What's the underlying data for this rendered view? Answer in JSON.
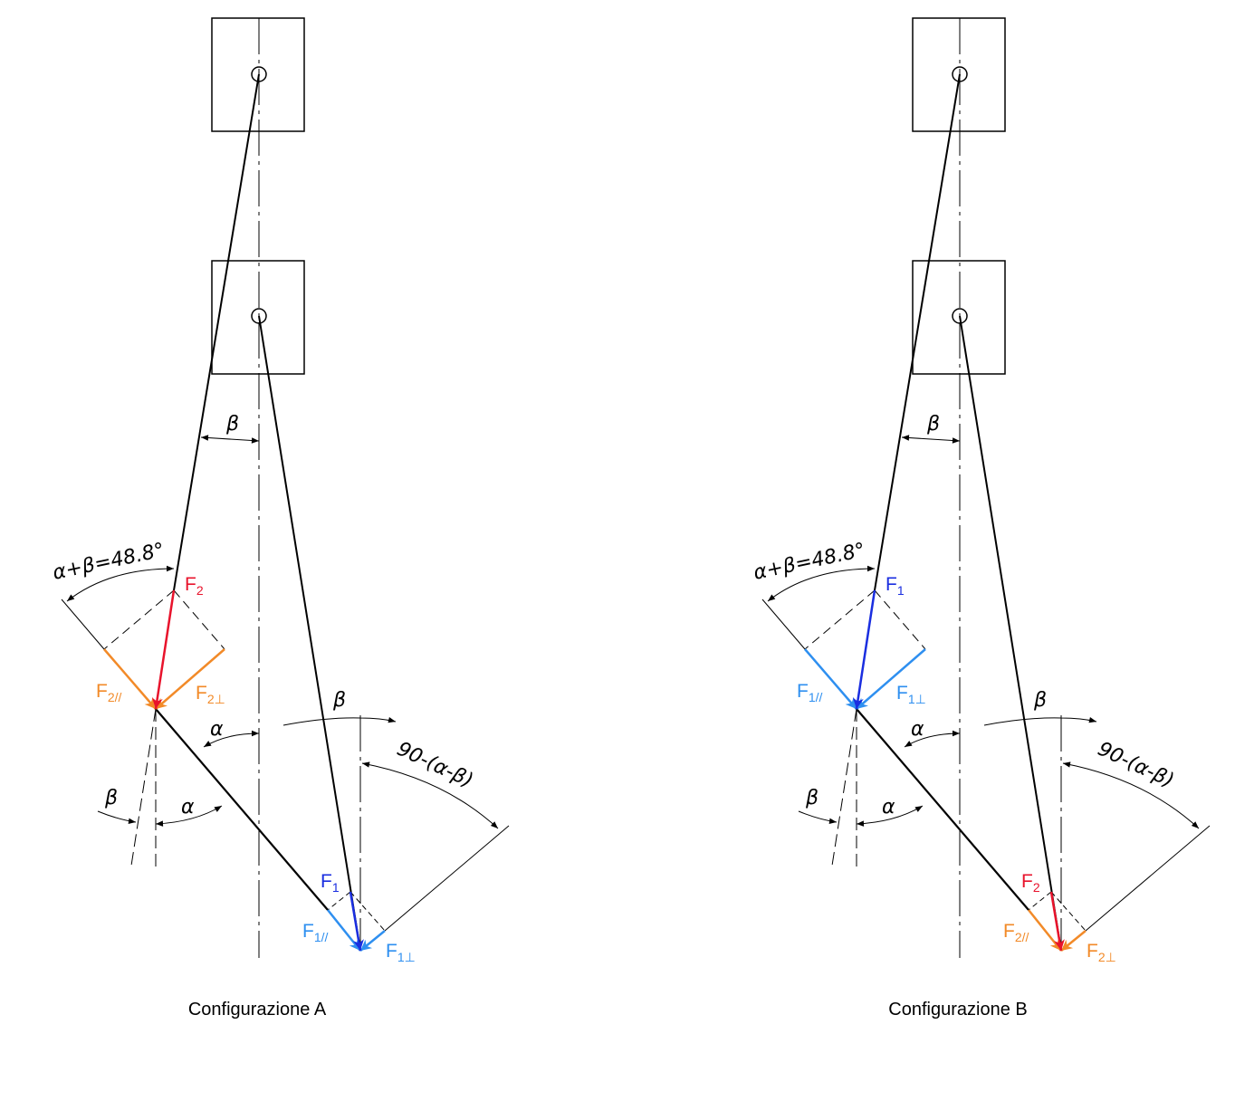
{
  "panels": [
    {
      "caption": "Configurazione A",
      "upper_force": {
        "base": "F",
        "sub": "2"
      },
      "upper_parallel": {
        "base": "F",
        "sub": "2//"
      },
      "upper_perpendicular": {
        "base": "F",
        "sub": "2⊥"
      },
      "lower_force": {
        "base": "F",
        "sub": "1"
      },
      "lower_parallel": {
        "base": "F",
        "sub": "1//"
      },
      "lower_perpendicular": {
        "base": "F",
        "sub": "1⊥"
      },
      "angles": {
        "beta_top": "β",
        "sum": "α+β=48.8°",
        "alpha_mid": "α",
        "beta_low": "β",
        "alpha_low": "α",
        "beta_right": "β",
        "complement": "90-(α-β)"
      }
    },
    {
      "caption": "Configurazione B",
      "upper_force": {
        "base": "F",
        "sub": "1"
      },
      "upper_parallel": {
        "base": "F",
        "sub": "1//"
      },
      "upper_perpendicular": {
        "base": "F",
        "sub": "1⊥"
      },
      "lower_force": {
        "base": "F",
        "sub": "2"
      },
      "lower_parallel": {
        "base": "F",
        "sub": "2//"
      },
      "lower_perpendicular": {
        "base": "F",
        "sub": "2⊥"
      },
      "angles": {
        "beta_top": "β",
        "sum": "α+β=48.8°",
        "alpha_mid": "α",
        "beta_low": "β",
        "alpha_low": "α",
        "beta_right": "β",
        "complement": "90-(α-β)"
      }
    }
  ]
}
